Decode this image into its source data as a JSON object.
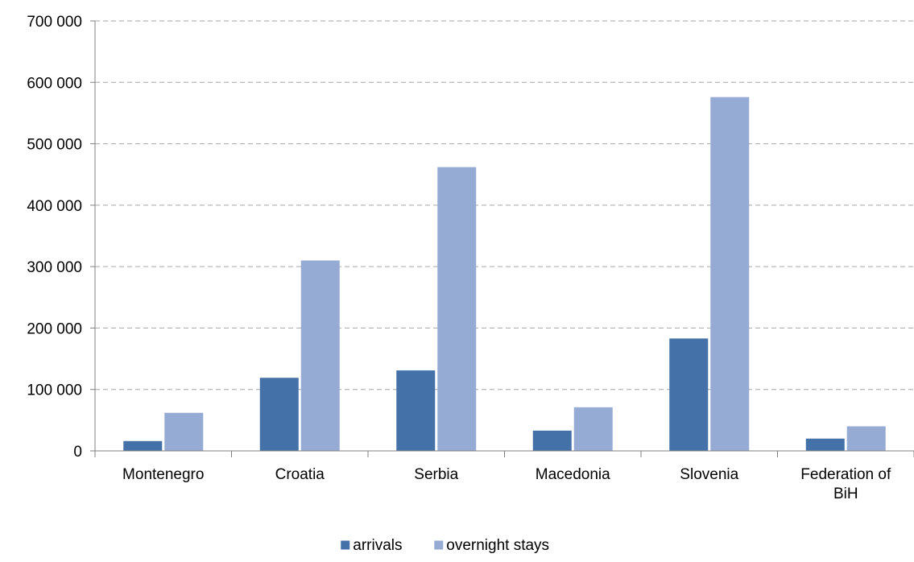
{
  "chart_data": {
    "type": "bar",
    "categories": [
      [
        "Montenegro"
      ],
      [
        "Croatia"
      ],
      [
        "Serbia"
      ],
      [
        "Macedonia"
      ],
      [
        "Slovenia"
      ],
      [
        "Federation of",
        "BiH"
      ]
    ],
    "series": [
      {
        "name": "arrivals",
        "color": "#4472a8",
        "values": [
          16000,
          119000,
          131000,
          33000,
          183000,
          20000
        ]
      },
      {
        "name": "overnight stays",
        "color": "#95abd3",
        "values": [
          62000,
          310000,
          462000,
          71000,
          576000,
          40000
        ]
      }
    ],
    "y_ticks": [
      "0",
      "100 000",
      "200 000",
      "300 000",
      "400 000",
      "500 000",
      "600 000",
      "700 000"
    ],
    "ylim": [
      0,
      700000
    ],
    "y_step": 100000,
    "grid": true,
    "legend_position": "bottom",
    "title": "",
    "xlabel": "",
    "ylabel": ""
  }
}
